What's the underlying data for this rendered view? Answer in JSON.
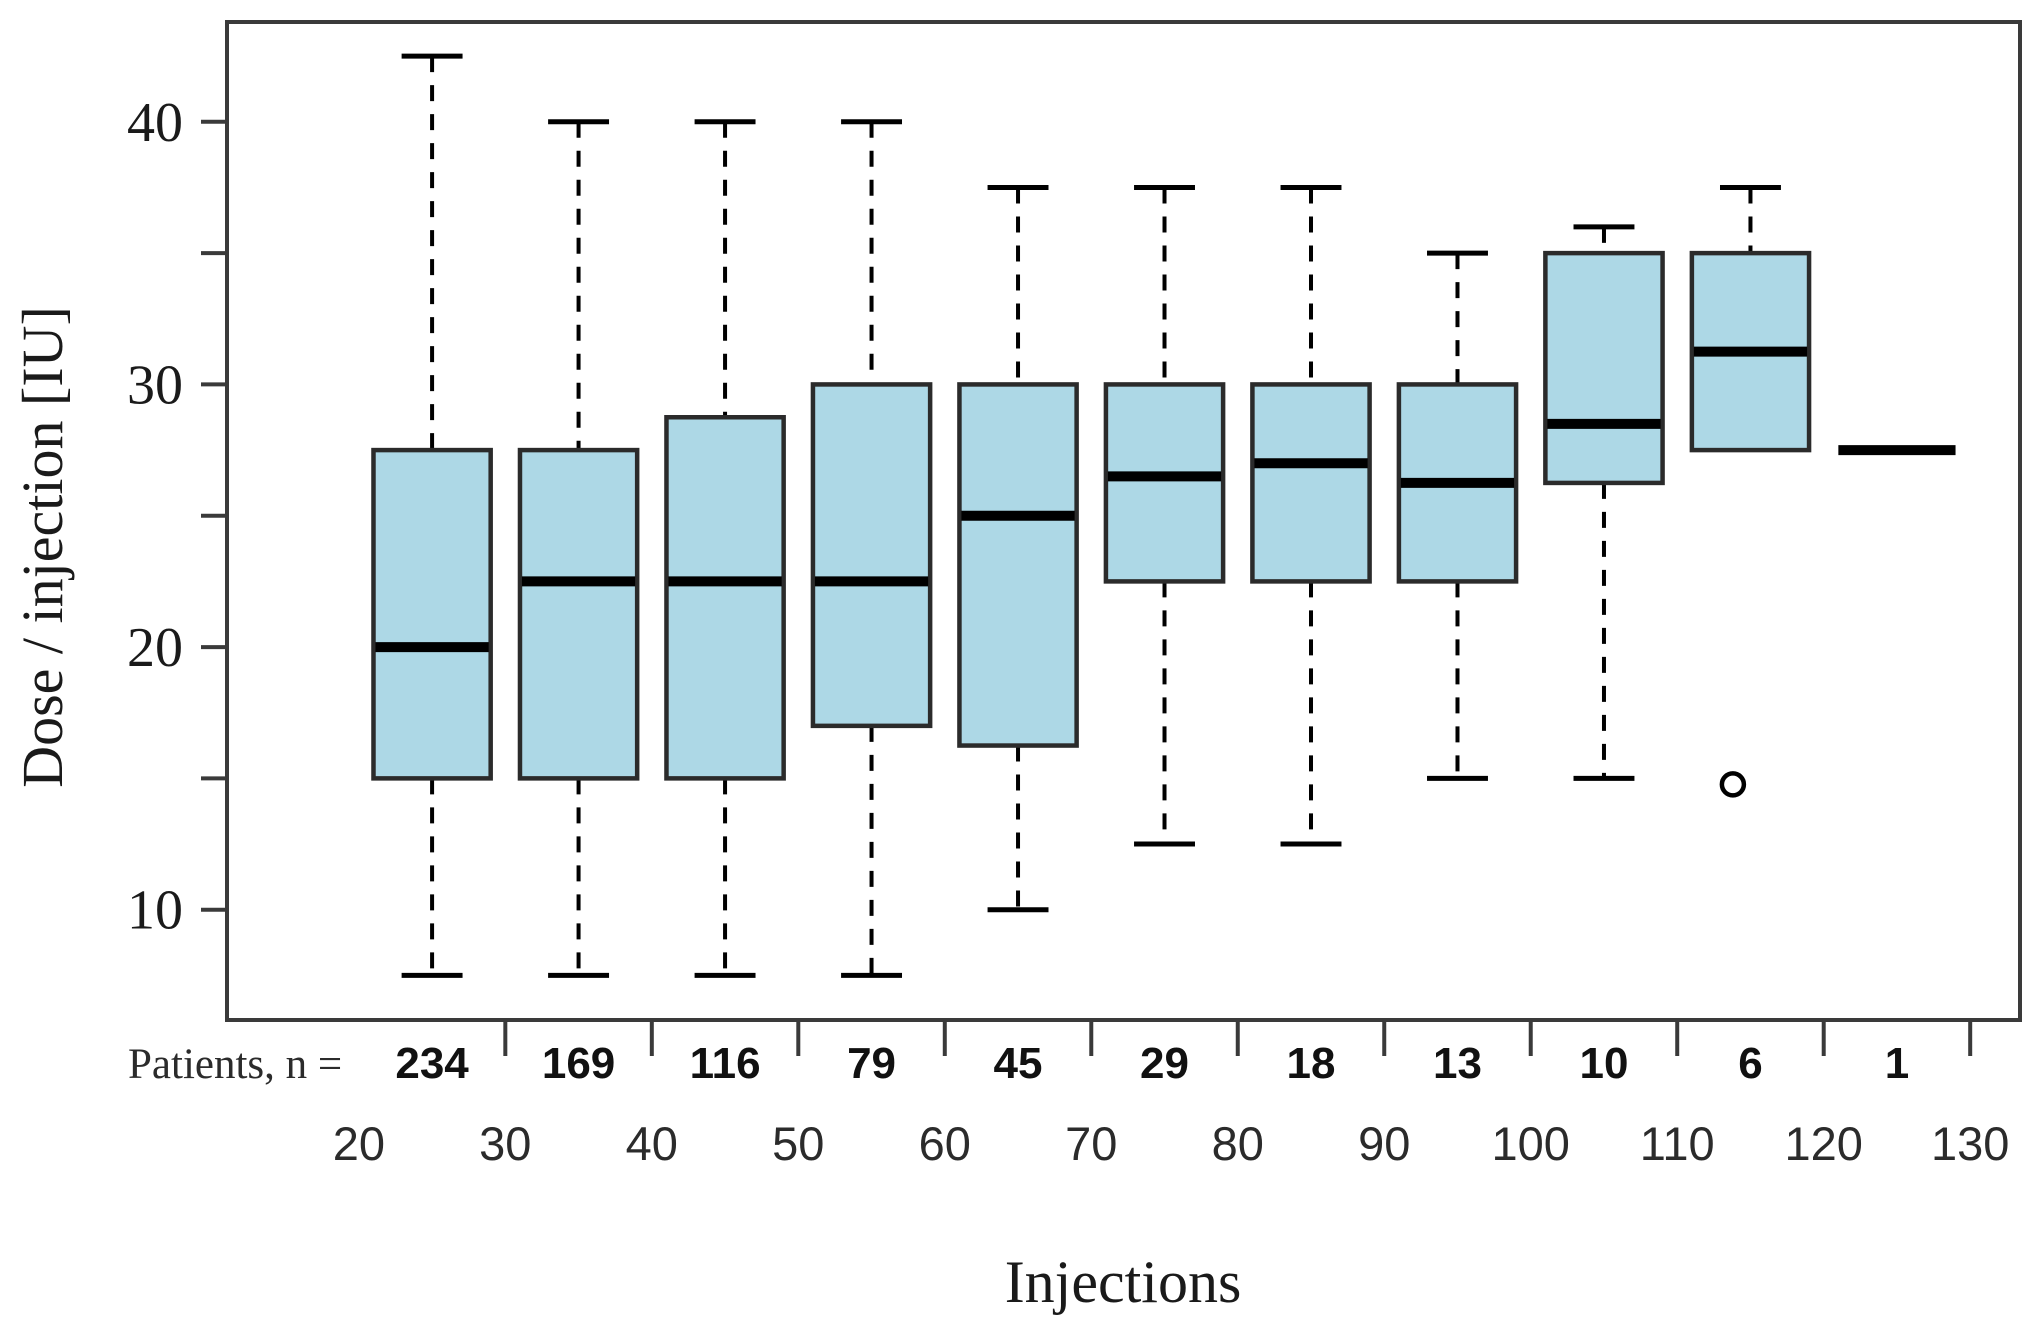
{
  "figure": {
    "background": "#ffffff",
    "box_fill": "#ADD8E6",
    "box_border": "#2b2b2b",
    "line_color": "#000000",
    "frame_color": "#3a3a3a",
    "tick_color": "#3a3a3a"
  },
  "chart_data": {
    "type": "boxplot",
    "title": "",
    "xlabel": "Injections",
    "ylabel": "Dose / injection [IU]",
    "patients_row_label": "Patients, n =",
    "xlim": [
      11,
      133.4
    ],
    "ylim": [
      5.8,
      43.8
    ],
    "x_tick_labels": [
      20,
      30,
      40,
      50,
      60,
      70,
      80,
      90,
      100,
      110,
      120,
      130
    ],
    "x_tick_marks": [
      30,
      40,
      50,
      60,
      70,
      80,
      90,
      100,
      110,
      120,
      130
    ],
    "y_tick_values": [
      10,
      15,
      20,
      25,
      30,
      35,
      40
    ],
    "y_tick_labeled": [
      10,
      20,
      30,
      40
    ],
    "grid": "off",
    "legend": "none",
    "box_width_units": 8,
    "groups": [
      {
        "center": 25,
        "patients": 234,
        "whisker_low": 7.5,
        "q1": 15,
        "median": 20,
        "q3": 27.5,
        "whisker_high": 42.5,
        "outliers": []
      },
      {
        "center": 35,
        "patients": 169,
        "whisker_low": 7.5,
        "q1": 15,
        "median": 22.5,
        "q3": 27.5,
        "whisker_high": 40,
        "outliers": []
      },
      {
        "center": 45,
        "patients": 116,
        "whisker_low": 7.5,
        "q1": 15,
        "median": 22.5,
        "q3": 28.75,
        "whisker_high": 40,
        "outliers": []
      },
      {
        "center": 55,
        "patients": 79,
        "whisker_low": 7.5,
        "q1": 17,
        "median": 22.5,
        "q3": 30,
        "whisker_high": 40,
        "outliers": []
      },
      {
        "center": 65,
        "patients": 45,
        "whisker_low": 10,
        "q1": 16.25,
        "median": 25,
        "q3": 30,
        "whisker_high": 37.5,
        "outliers": []
      },
      {
        "center": 75,
        "patients": 29,
        "whisker_low": 12.5,
        "q1": 22.5,
        "median": 26.5,
        "q3": 30,
        "whisker_high": 37.5,
        "outliers": []
      },
      {
        "center": 85,
        "patients": 18,
        "whisker_low": 12.5,
        "q1": 22.5,
        "median": 27,
        "q3": 30,
        "whisker_high": 37.5,
        "outliers": []
      },
      {
        "center": 95,
        "patients": 13,
        "whisker_low": 15,
        "q1": 22.5,
        "median": 26.25,
        "q3": 30,
        "whisker_high": 35,
        "outliers": []
      },
      {
        "center": 105,
        "patients": 10,
        "whisker_low": 15,
        "q1": 26.25,
        "median": 28.5,
        "q3": 35,
        "whisker_high": 36,
        "outliers": []
      },
      {
        "center": 115,
        "patients": 6,
        "whisker_low": null,
        "q1": 27.5,
        "median": 31.25,
        "q3": 35,
        "whisker_high": 37.5,
        "outliers": [
          15
        ]
      },
      {
        "center": 125,
        "patients": 1,
        "whisker_low": null,
        "q1": null,
        "median": 27.5,
        "q3": null,
        "whisker_high": null,
        "outliers": []
      }
    ]
  }
}
